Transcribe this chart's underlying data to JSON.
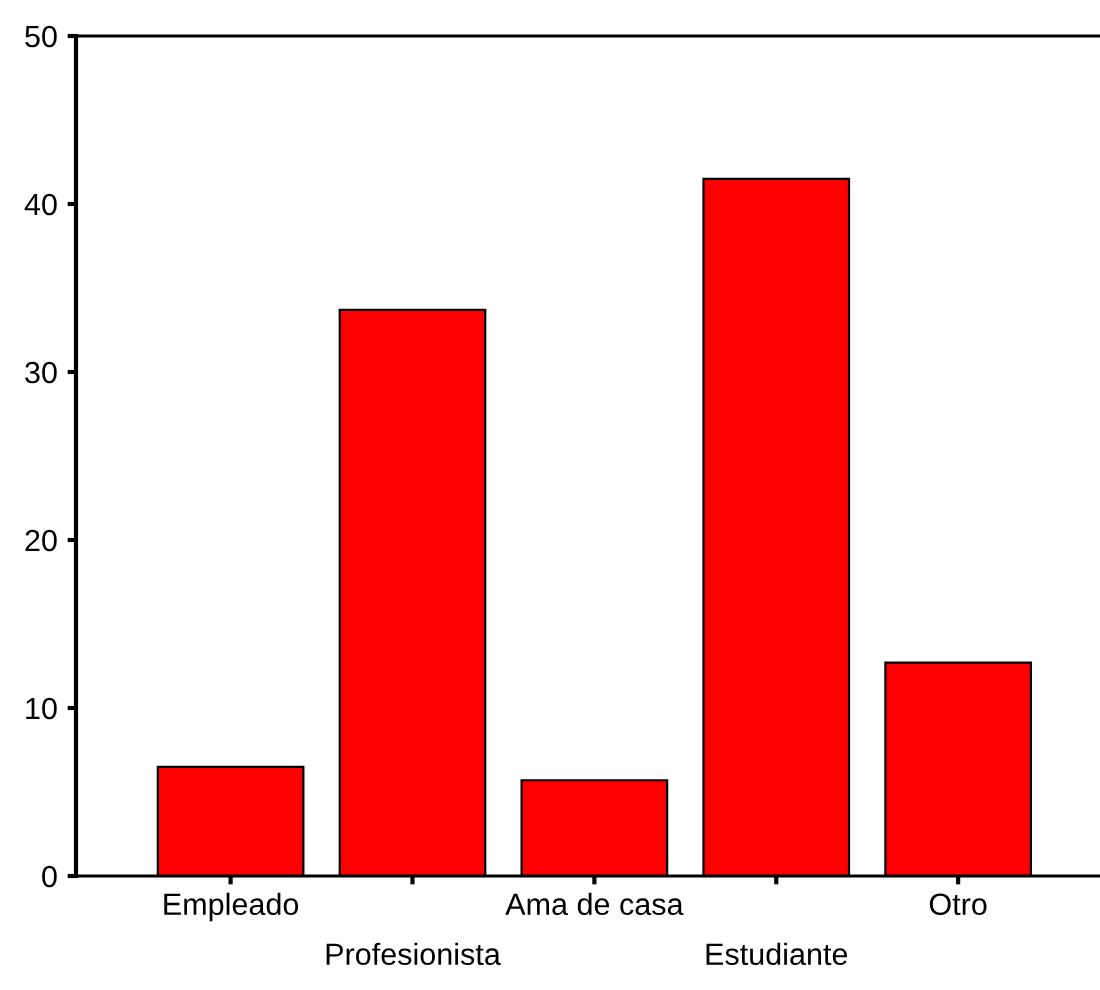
{
  "chart_data": {
    "type": "bar",
    "categories": [
      "Empleado",
      "Profesionista",
      "Ama de casa",
      "Estudiante",
      "Otro"
    ],
    "values": [
      6.5,
      33.7,
      5.7,
      41.5,
      12.7
    ],
    "color": "#ff0000",
    "ylim": [
      0,
      50
    ],
    "yticks": [
      0,
      10,
      20,
      30,
      40,
      50
    ],
    "grid": false
  }
}
